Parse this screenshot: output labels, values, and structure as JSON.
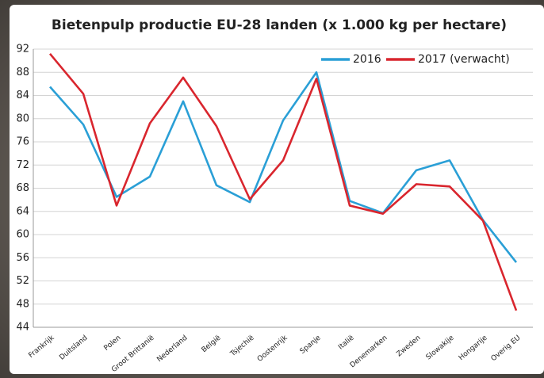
{
  "chart_data": {
    "type": "line",
    "title": "Bietenpulp productie EU-28 landen (x 1.000 kg per hectare)",
    "categories": [
      "Frankrijk",
      "Duitsland",
      "Polen",
      "Groot Brittanië",
      "Nederland",
      "België",
      "Tsjechië",
      "Oostenrijk",
      "Spanje",
      "Italië",
      "Denemarken",
      "Zweden",
      "Slowakije",
      "Hongarije",
      "Overig EU"
    ],
    "series": [
      {
        "name": "2016",
        "color": "#2a9fd6",
        "values": [
          85.5,
          79,
          66.5,
          70,
          83,
          68.5,
          65.6,
          79.7,
          88,
          65.8,
          63.7,
          71.1,
          72.8,
          62.5,
          55.2
        ]
      },
      {
        "name": "2017 (verwacht)",
        "color": "#d9262e",
        "values": [
          91.2,
          84.3,
          65,
          79.2,
          87.1,
          78.7,
          66.1,
          72.8,
          86.9,
          65,
          63.6,
          68.7,
          68.3,
          62.4,
          46.9
        ]
      }
    ],
    "ylim": [
      44,
      92
    ],
    "yticks": [
      44,
      48,
      52,
      56,
      60,
      64,
      68,
      72,
      76,
      80,
      84,
      88,
      92
    ],
    "grid": true,
    "legend": "top-right"
  }
}
